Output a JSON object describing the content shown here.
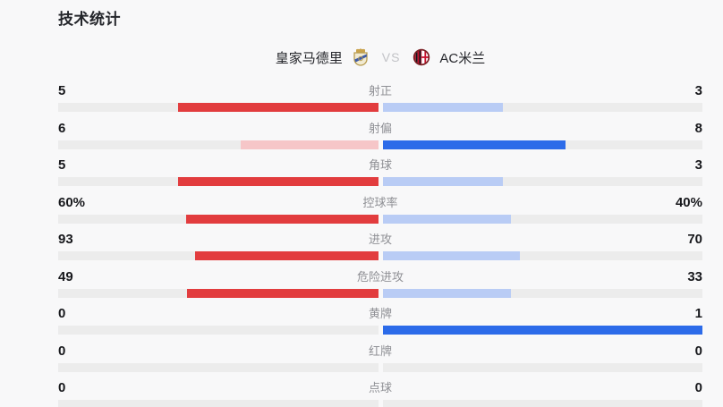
{
  "page": {
    "title": "技术统计"
  },
  "header": {
    "home_team": "皇家马德里",
    "vs_label": "VS",
    "away_team": "AC米兰",
    "home_logo_icon": "real-madrid-crest",
    "away_logo_icon": "ac-milan-crest"
  },
  "colors": {
    "home_strong": "#e23c3e",
    "home_faded": "#f6c6c8",
    "away_strong": "#2c6be9",
    "away_faded": "#b9ccf5",
    "track": "#ececec",
    "label_gray": "#8f9095",
    "vs_gray": "#c2c3c7"
  },
  "stats": {
    "rows": [
      {
        "label": "射正",
        "home_value": "5",
        "away_value": "3",
        "home_fill_pct": 62.5,
        "away_fill_pct": 37.5,
        "home_color": "home_strong",
        "away_color": "away_faded"
      },
      {
        "label": "射偏",
        "home_value": "6",
        "away_value": "8",
        "home_fill_pct": 42.9,
        "away_fill_pct": 57.1,
        "home_color": "home_faded",
        "away_color": "away_strong"
      },
      {
        "label": "角球",
        "home_value": "5",
        "away_value": "3",
        "home_fill_pct": 62.5,
        "away_fill_pct": 37.5,
        "home_color": "home_strong",
        "away_color": "away_faded"
      },
      {
        "label": "控球率",
        "home_value": "60%",
        "away_value": "40%",
        "home_fill_pct": 60,
        "away_fill_pct": 40,
        "home_color": "home_strong",
        "away_color": "away_faded"
      },
      {
        "label": "进攻",
        "home_value": "93",
        "away_value": "70",
        "home_fill_pct": 57.1,
        "away_fill_pct": 42.9,
        "home_color": "home_strong",
        "away_color": "away_faded"
      },
      {
        "label": "危险进攻",
        "home_value": "49",
        "away_value": "33",
        "home_fill_pct": 59.8,
        "away_fill_pct": 40.2,
        "home_color": "home_strong",
        "away_color": "away_faded"
      },
      {
        "label": "黄牌",
        "home_value": "0",
        "away_value": "1",
        "home_fill_pct": 0,
        "away_fill_pct": 100,
        "home_color": "home_faded",
        "away_color": "away_strong"
      },
      {
        "label": "红牌",
        "home_value": "0",
        "away_value": "0",
        "home_fill_pct": 0,
        "away_fill_pct": 0,
        "home_color": "home_faded",
        "away_color": "away_faded"
      },
      {
        "label": "点球",
        "home_value": "0",
        "away_value": "0",
        "home_fill_pct": 0,
        "away_fill_pct": 0,
        "home_color": "home_faded",
        "away_color": "away_faded"
      }
    ]
  },
  "chart_data": {
    "type": "bar",
    "orientation": "horizontal-paired",
    "title": "技术统计",
    "categories": [
      "射正",
      "射偏",
      "角球",
      "控球率",
      "进攻",
      "危险进攻",
      "黄牌",
      "红牌",
      "点球"
    ],
    "series": [
      {
        "name": "皇家马德里",
        "values": [
          5,
          6,
          5,
          60,
          93,
          49,
          0,
          0,
          0
        ]
      },
      {
        "name": "AC米兰",
        "values": [
          3,
          8,
          3,
          40,
          70,
          33,
          1,
          0,
          0
        ]
      }
    ],
    "value_units": [
      "",
      "",
      "",
      "%",
      "",
      "",
      "",
      "",
      ""
    ],
    "legend_position": "top-center",
    "grid": false,
    "note": "Each pair of bars grows outward from the center; bar length = value / (home+away). Leading team bar is saturated (red=home, blue=away), trailing team bar is a faded tint."
  }
}
